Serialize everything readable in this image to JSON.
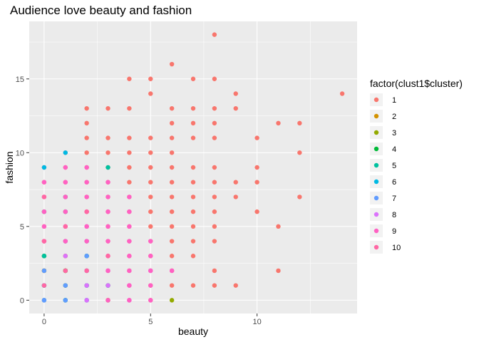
{
  "chart_data": {
    "type": "scatter",
    "title": "Audience love beauty and fashion",
    "xlabel": "beauty",
    "ylabel": "fashion",
    "xlim": [
      -0.7,
      14.7
    ],
    "ylim": [
      -0.9,
      18.9
    ],
    "x_ticks": [
      0,
      5,
      10
    ],
    "y_ticks": [
      0,
      5,
      10,
      15
    ],
    "grid": true,
    "legend": {
      "title": "factor(clust1$cluster)",
      "position": "right"
    },
    "series": [
      {
        "name": "1",
        "color": "#F8766D",
        "points": [
          [
            0,
            0
          ],
          [
            0,
            1
          ],
          [
            0,
            2
          ],
          [
            0,
            3
          ],
          [
            0,
            4
          ],
          [
            0,
            5
          ],
          [
            0,
            6
          ],
          [
            0,
            7
          ],
          [
            0,
            8
          ],
          [
            0,
            9
          ],
          [
            1,
            0
          ],
          [
            1,
            1
          ],
          [
            1,
            2
          ],
          [
            1,
            3
          ],
          [
            1,
            4
          ],
          [
            1,
            5
          ],
          [
            1,
            6
          ],
          [
            1,
            7
          ],
          [
            1,
            8
          ],
          [
            1,
            9
          ],
          [
            1,
            10
          ],
          [
            2,
            0
          ],
          [
            2,
            1
          ],
          [
            2,
            2
          ],
          [
            2,
            3
          ],
          [
            2,
            4
          ],
          [
            2,
            5
          ],
          [
            2,
            6
          ],
          [
            2,
            7
          ],
          [
            2,
            8
          ],
          [
            2,
            9
          ],
          [
            2,
            10
          ],
          [
            2,
            11
          ],
          [
            2,
            12
          ],
          [
            2,
            13
          ],
          [
            3,
            0
          ],
          [
            3,
            1
          ],
          [
            3,
            2
          ],
          [
            3,
            3
          ],
          [
            3,
            4
          ],
          [
            3,
            5
          ],
          [
            3,
            6
          ],
          [
            3,
            7
          ],
          [
            3,
            8
          ],
          [
            3,
            9
          ],
          [
            3,
            10
          ],
          [
            3,
            11
          ],
          [
            3,
            13
          ],
          [
            4,
            0
          ],
          [
            4,
            1
          ],
          [
            4,
            2
          ],
          [
            4,
            3
          ],
          [
            4,
            4
          ],
          [
            4,
            5
          ],
          [
            4,
            6
          ],
          [
            4,
            7
          ],
          [
            4,
            8
          ],
          [
            4,
            9
          ],
          [
            4,
            10
          ],
          [
            4,
            11
          ],
          [
            4,
            13
          ],
          [
            4,
            15
          ],
          [
            5,
            0
          ],
          [
            5,
            1
          ],
          [
            5,
            2
          ],
          [
            5,
            3
          ],
          [
            5,
            4
          ],
          [
            5,
            5
          ],
          [
            5,
            6
          ],
          [
            5,
            7
          ],
          [
            5,
            8
          ],
          [
            5,
            9
          ],
          [
            5,
            10
          ],
          [
            5,
            11
          ],
          [
            5,
            14
          ],
          [
            5,
            15
          ],
          [
            6,
            1
          ],
          [
            6,
            2
          ],
          [
            6,
            3
          ],
          [
            6,
            4
          ],
          [
            6,
            5
          ],
          [
            6,
            6
          ],
          [
            6,
            7
          ],
          [
            6,
            8
          ],
          [
            6,
            9
          ],
          [
            6,
            10
          ],
          [
            6,
            11
          ],
          [
            6,
            12
          ],
          [
            6,
            13
          ],
          [
            6,
            16
          ],
          [
            7,
            1
          ],
          [
            7,
            3
          ],
          [
            7,
            4
          ],
          [
            7,
            5
          ],
          [
            7,
            6
          ],
          [
            7,
            7
          ],
          [
            7,
            8
          ],
          [
            7,
            9
          ],
          [
            7,
            11
          ],
          [
            7,
            12
          ],
          [
            7,
            13
          ],
          [
            7,
            15
          ],
          [
            8,
            1
          ],
          [
            8,
            2
          ],
          [
            8,
            4
          ],
          [
            8,
            5
          ],
          [
            8,
            6
          ],
          [
            8,
            7
          ],
          [
            8,
            8
          ],
          [
            8,
            9
          ],
          [
            8,
            11
          ],
          [
            8,
            12
          ],
          [
            8,
            13
          ],
          [
            8,
            15
          ],
          [
            8,
            18
          ],
          [
            9,
            1
          ],
          [
            9,
            7
          ],
          [
            9,
            8
          ],
          [
            9,
            13
          ],
          [
            9,
            14
          ],
          [
            10,
            6
          ],
          [
            10,
            8
          ],
          [
            10,
            9
          ],
          [
            10,
            11
          ],
          [
            11,
            2
          ],
          [
            11,
            5
          ],
          [
            11,
            12
          ],
          [
            12,
            7
          ],
          [
            12,
            10
          ],
          [
            12,
            12
          ],
          [
            14,
            14
          ]
        ]
      },
      {
        "name": "2",
        "color": "#D39200",
        "points": [
          [
            0,
            2
          ],
          [
            1,
            3
          ],
          [
            1,
            2
          ],
          [
            0,
            3
          ]
        ]
      },
      {
        "name": "3",
        "color": "#93AA00",
        "points": [
          [
            0,
            2
          ],
          [
            1,
            0
          ],
          [
            3,
            0
          ],
          [
            6,
            0
          ],
          [
            1,
            2
          ],
          [
            0,
            3
          ]
        ]
      },
      {
        "name": "4",
        "color": "#00BA38",
        "points": [
          [
            0,
            3
          ],
          [
            1,
            1
          ],
          [
            1,
            2
          ],
          [
            2,
            1
          ],
          [
            3,
            1
          ],
          [
            1,
            0
          ],
          [
            0,
            1
          ],
          [
            2,
            3
          ]
        ]
      },
      {
        "name": "5",
        "color": "#00C19F",
        "points": [
          [
            0,
            3
          ],
          [
            1,
            6
          ],
          [
            1,
            7
          ],
          [
            2,
            3
          ],
          [
            3,
            9
          ],
          [
            0,
            6
          ],
          [
            2,
            1
          ],
          [
            1,
            4
          ],
          [
            3,
            1
          ],
          [
            2,
            2
          ]
        ]
      },
      {
        "name": "6",
        "color": "#00B9E3",
        "points": [
          [
            0,
            9
          ],
          [
            1,
            10
          ],
          [
            0,
            1
          ],
          [
            1,
            0
          ],
          [
            0,
            0
          ],
          [
            2,
            0
          ]
        ]
      },
      {
        "name": "7",
        "color": "#619CFF",
        "points": [
          [
            0,
            0
          ],
          [
            0,
            1
          ],
          [
            1,
            0
          ],
          [
            2,
            0
          ],
          [
            2,
            1
          ],
          [
            2,
            4
          ],
          [
            1,
            1
          ],
          [
            0,
            2
          ],
          [
            2,
            3
          ]
        ]
      },
      {
        "name": "8",
        "color": "#DB72FB",
        "points": [
          [
            0,
            4
          ],
          [
            1,
            4
          ],
          [
            2,
            2
          ],
          [
            2,
            1
          ],
          [
            3,
            1
          ],
          [
            4,
            0
          ],
          [
            1,
            5
          ],
          [
            2,
            5
          ],
          [
            3,
            2
          ],
          [
            4,
            1
          ],
          [
            5,
            2
          ],
          [
            1,
            3
          ],
          [
            2,
            0
          ]
        ]
      },
      {
        "name": "9",
        "color": "#FF61C3",
        "points": [
          [
            0,
            8
          ],
          [
            0,
            7
          ],
          [
            0,
            5
          ],
          [
            0,
            4
          ],
          [
            1,
            8
          ],
          [
            1,
            9
          ],
          [
            1,
            7
          ],
          [
            1,
            5
          ],
          [
            1,
            4
          ],
          [
            2,
            9
          ],
          [
            2,
            8
          ],
          [
            2,
            7
          ],
          [
            2,
            6
          ],
          [
            2,
            5
          ],
          [
            3,
            8
          ],
          [
            3,
            7
          ],
          [
            3,
            6
          ],
          [
            3,
            5
          ],
          [
            3,
            4
          ],
          [
            3,
            3
          ],
          [
            4,
            7
          ],
          [
            4,
            6
          ],
          [
            4,
            5
          ],
          [
            4,
            4
          ],
          [
            4,
            3
          ],
          [
            4,
            2
          ],
          [
            5,
            4
          ],
          [
            5,
            3
          ],
          [
            5,
            2
          ],
          [
            5,
            1
          ],
          [
            0,
            6
          ],
          [
            1,
            6
          ],
          [
            2,
            4
          ],
          [
            3,
            2
          ],
          [
            4,
            1
          ],
          [
            5,
            0
          ],
          [
            3,
            0
          ],
          [
            4,
            0
          ],
          [
            6,
            2
          ]
        ]
      },
      {
        "name": "10",
        "color": "#FF67A4",
        "points": [
          [
            0,
            7
          ],
          [
            0,
            4
          ],
          [
            1,
            5
          ],
          [
            2,
            6
          ],
          [
            0,
            1
          ],
          [
            1,
            2
          ],
          [
            2,
            2
          ],
          [
            3,
            3
          ]
        ]
      }
    ]
  }
}
